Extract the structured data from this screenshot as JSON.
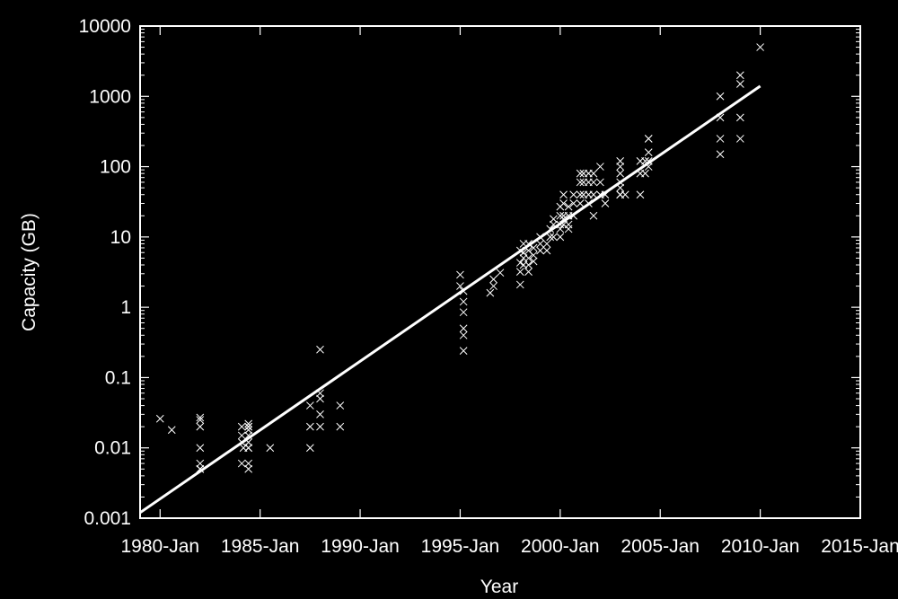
{
  "chart_data": {
    "type": "scatter",
    "title": "",
    "xlabel": "Year",
    "ylabel": "Capacity (GB)",
    "xscale": "time",
    "yscale": "log",
    "xlim": [
      "1979-Jan",
      "2015-Jan"
    ],
    "ylim": [
      0.001,
      10000
    ],
    "grid": false,
    "legend": "none",
    "colors": {
      "background": "#000000",
      "axis": "#ffffff",
      "points": "#ffffff",
      "trend": "#ffffff"
    },
    "x_ticks": [
      {
        "value": "1980-Jan",
        "label": "1980-Jan"
      },
      {
        "value": "1985-Jan",
        "label": "1985-Jan"
      },
      {
        "value": "1990-Jan",
        "label": "1990-Jan"
      },
      {
        "value": "1995-Jan",
        "label": "1995-Jan"
      },
      {
        "value": "2000-Jan",
        "label": "2000-Jan"
      },
      {
        "value": "2005-Jan",
        "label": "2005-Jan"
      },
      {
        "value": "2010-Jan",
        "label": "2010-Jan"
      },
      {
        "value": "2015-Jan",
        "label": "2015-Jan"
      }
    ],
    "y_ticks": [
      {
        "value": 0.001,
        "label": "0.001"
      },
      {
        "value": 0.01,
        "label": "0.01"
      },
      {
        "value": 0.1,
        "label": "0.1"
      },
      {
        "value": 1,
        "label": "1"
      },
      {
        "value": 10,
        "label": "10"
      },
      {
        "value": 100,
        "label": "100"
      },
      {
        "value": 1000,
        "label": "1000"
      },
      {
        "value": 10000,
        "label": "10000"
      }
    ],
    "series": [
      {
        "type": "scatter",
        "marker": "x",
        "x": [
          "1980-Jan",
          "1980-Aug",
          "1982-Jan",
          "1982-Jan",
          "1982-Jan",
          "1982-Jan",
          "1982-Jan",
          "1982-Jan",
          "1982-Jan",
          "1984-Feb",
          "1984-Feb",
          "1984-Feb",
          "1984-Feb",
          "1984-Mar",
          "1984-Jun",
          "1984-Jun",
          "1984-Jun",
          "1984-Jun",
          "1984-Jun",
          "1984-Jun",
          "1984-Jun",
          "1984-Jun",
          "1984-Jun",
          "1984-Jun",
          "1985-Jul",
          "1987-Jul",
          "1987-Jul",
          "1987-Jul",
          "1988-Jan",
          "1988-Jan",
          "1988-Jan",
          "1988-Jan",
          "1988-Jan",
          "1989-Jan",
          "1989-Jan",
          "1995-Jan",
          "1995-Jan",
          "1995-Mar",
          "1995-Mar",
          "1995-Mar",
          "1995-Mar",
          "1995-Mar",
          "1995-Mar",
          "1996-Jul",
          "1996-Sep",
          "1996-Sep",
          "1997-Jan",
          "1998-Jan",
          "1998-Jan",
          "1998-Jan",
          "1998-Jan",
          "1998-Mar",
          "1998-Mar",
          "1998-Mar",
          "1998-Mar",
          "1998-Jun",
          "1998-Jun",
          "1998-Jun",
          "1998-Jun",
          "1998-Jun",
          "1998-Sep",
          "1998-Sep",
          "1998-Sep",
          "1999-Jan",
          "1999-Jan",
          "1999-Jan",
          "1999-May",
          "1999-May",
          "1999-Jul",
          "1999-Jul",
          "1999-Sep",
          "1999-Sep",
          "1999-Sep",
          "2000-Jan",
          "2000-Jan",
          "2000-Jan",
          "2000-Jan",
          "2000-Jan",
          "2000-Mar",
          "2000-Mar",
          "2000-Mar",
          "2000-Mar",
          "2000-Mar",
          "2000-Jun",
          "2000-Jun",
          "2000-Jun",
          "2000-Jun",
          "2000-Sep",
          "2000-Sep",
          "2000-Sep",
          "2001-Jan",
          "2001-Jan",
          "2001-Jan",
          "2001-Jan",
          "2001-Mar",
          "2001-Mar",
          "2001-Mar",
          "2001-Jun",
          "2001-Jun",
          "2001-Jun",
          "2001-Jun",
          "2001-Sep",
          "2001-Sep",
          "2001-Sep",
          "2001-Sep",
          "2002-Jan",
          "2002-Jan",
          "2002-Jan",
          "2002-Apr",
          "2002-Apr",
          "2003-Jan",
          "2003-Jan",
          "2003-Jan",
          "2003-Jan",
          "2003-Jan",
          "2003-Jan",
          "2003-Jan",
          "2003-Apr",
          "2004-Jan",
          "2004-Jan",
          "2004-Jan",
          "2004-Apr",
          "2004-Apr",
          "2004-Jun",
          "2004-Jun",
          "2004-Jun",
          "2004-Jun",
          "2004-Jun",
          "2008-Jan",
          "2008-Jan",
          "2008-Jan",
          "2008-Jan",
          "2009-Jan",
          "2009-Jan",
          "2009-Jan",
          "2009-Jan",
          "2010-Jan"
        ],
        "y": [
          0.026,
          0.018,
          0.027,
          0.025,
          0.02,
          0.01,
          0.006,
          0.005,
          0.005,
          0.02,
          0.015,
          0.012,
          0.006,
          0.01,
          0.02,
          0.02,
          0.022,
          0.018,
          0.015,
          0.012,
          0.01,
          0.01,
          0.006,
          0.005,
          0.01,
          0.04,
          0.02,
          0.01,
          0.25,
          0.06,
          0.05,
          0.03,
          0.02,
          0.04,
          0.02,
          2.9,
          2.0,
          1.7,
          1.2,
          0.85,
          0.5,
          0.4,
          0.24,
          1.6,
          2.0,
          2.5,
          3.1,
          2.1,
          3.2,
          4.3,
          6.4,
          4.0,
          5.0,
          6.0,
          8.0,
          3.2,
          4.0,
          5.0,
          6.4,
          8.0,
          4.5,
          5.5,
          7.0,
          6.4,
          8.0,
          10.0,
          6.4,
          8.0,
          10.0,
          13.0,
          10.0,
          15.0,
          18.0,
          10.0,
          13.0,
          15.0,
          20.0,
          27.0,
          15.0,
          18.0,
          20.0,
          30.0,
          40.0,
          13.0,
          15.0,
          20.0,
          27.0,
          30.0,
          40.0,
          20.0,
          30.0,
          40.0,
          60.0,
          80.0,
          40.0,
          60.0,
          80.0,
          30.0,
          40.0,
          60.0,
          80.0,
          40.0,
          60.0,
          80.0,
          20.0,
          40.0,
          60.0,
          100.0,
          30.0,
          40.0,
          40.0,
          60.0,
          80.0,
          100.0,
          120.0,
          40.0,
          50.0,
          40.0,
          40.0,
          80.0,
          120.0,
          120.0,
          80.0,
          100.0,
          160.0,
          250.0,
          250.0,
          120.0,
          1000.0,
          500.0,
          250.0,
          150.0,
          2000.0,
          1500.0,
          500.0,
          250.0,
          5000.0
        ]
      },
      {
        "type": "line",
        "x": [
          "1979-Jan",
          "2010-Jan"
        ],
        "y": [
          0.0012,
          1400
        ]
      }
    ]
  }
}
